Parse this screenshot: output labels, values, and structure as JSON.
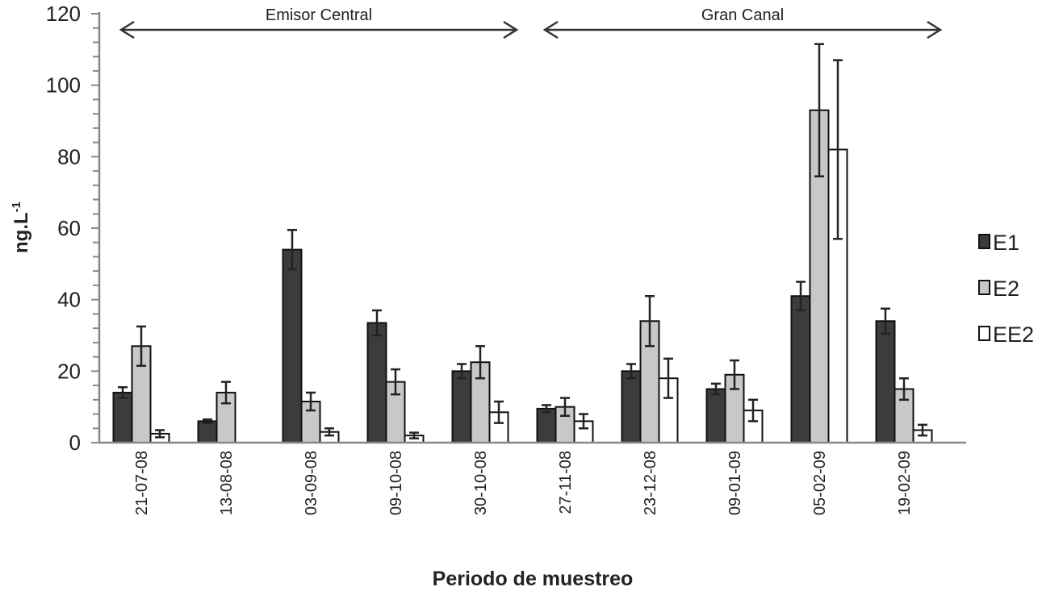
{
  "chart_data": {
    "type": "bar",
    "title": "",
    "xlabel": "Periodo de muestreo",
    "ylabel": "ng.L",
    "ylabel_superscript": "-1",
    "ylim": [
      0,
      120
    ],
    "yticks": [
      0,
      20,
      40,
      60,
      80,
      100,
      120
    ],
    "grid": false,
    "legend_position": "right",
    "categories": [
      "21-07-08",
      "13-08-08",
      "03-09-08",
      "09-10-08",
      "30-10-08",
      "27-11-08",
      "23-12-08",
      "09-01-09",
      "05-02-09",
      "19-02-09"
    ],
    "series": [
      {
        "name": "E1",
        "color": "#3c3c3c",
        "values": [
          14,
          6,
          54,
          33.5,
          20,
          9.5,
          20,
          15,
          41,
          34
        ],
        "errors": [
          1.5,
          0.5,
          5.5,
          3.5,
          2,
          1,
          2,
          1.5,
          4,
          3.5
        ]
      },
      {
        "name": "E2",
        "color": "#c8c8c8",
        "values": [
          27,
          14,
          11.5,
          17,
          22.5,
          10,
          34,
          19,
          93,
          15
        ],
        "errors": [
          5.5,
          3,
          2.5,
          3.5,
          4.5,
          2.5,
          7,
          4,
          18.5,
          3
        ]
      },
      {
        "name": "EE2",
        "color": "#ffffff",
        "values": [
          2.5,
          0,
          3,
          2,
          8.5,
          6,
          18,
          9,
          82,
          3.5
        ],
        "errors": [
          1,
          0,
          1,
          0.8,
          3,
          2,
          5.5,
          3,
          25,
          1.5
        ]
      }
    ],
    "annotations": [
      {
        "text": "Emisor Central",
        "from": "21-07-08",
        "to": "30-10-08"
      },
      {
        "text": "Gran Canal",
        "from": "27-11-08",
        "to": "19-02-09"
      }
    ]
  }
}
